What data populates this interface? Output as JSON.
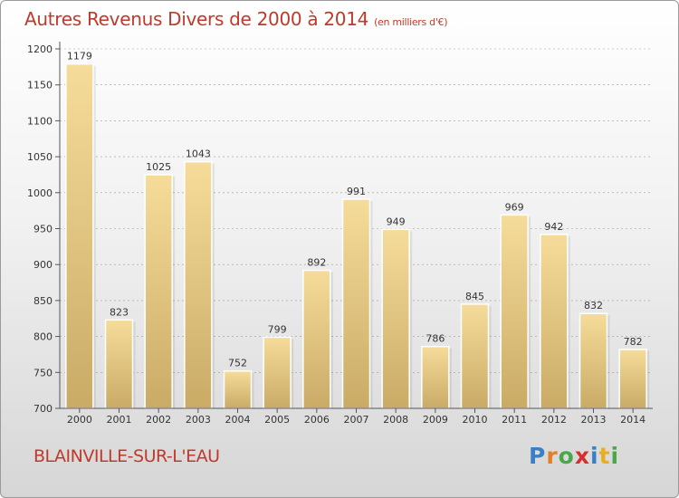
{
  "title": "Autres Revenus Divers de 2000 à 2014",
  "unit": "(en milliers d'€)",
  "city": "BLAINVILLE-SUR-L'EAU",
  "logo": {
    "letters": [
      "P",
      "r",
      "o",
      "x",
      "i",
      "t",
      "i"
    ],
    "colors": [
      "#3a7fc4",
      "#e67e22",
      "#4aa84a",
      "#d62f2f",
      "#3a7fc4",
      "#e6b022",
      "#4aa84a"
    ]
  },
  "colors": {
    "accent": "#c0392b",
    "bar_top": "#f6dc9a",
    "bar_bottom": "#c9ab66",
    "axis": "#555555",
    "grid": "#9a9a9a"
  },
  "chart_data": {
    "type": "bar",
    "categories": [
      "2000",
      "2001",
      "2002",
      "2003",
      "2004",
      "2005",
      "2006",
      "2007",
      "2008",
      "2009",
      "2010",
      "2011",
      "2012",
      "2013",
      "2014"
    ],
    "values": [
      1179,
      823,
      1025,
      1043,
      752,
      799,
      892,
      991,
      949,
      786,
      845,
      969,
      942,
      832,
      782
    ],
    "yticks": [
      700,
      750,
      800,
      850,
      900,
      950,
      1000,
      1050,
      1100,
      1150,
      1200
    ],
    "ylim": [
      700,
      1200
    ],
    "grid": true,
    "legend": false
  }
}
